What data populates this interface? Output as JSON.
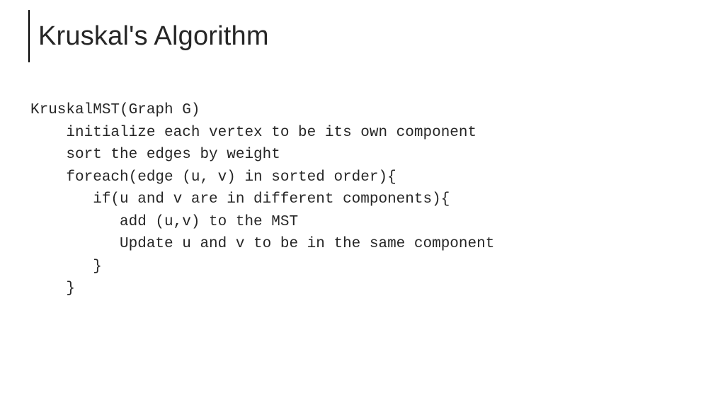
{
  "slide": {
    "title": "Kruskal's Algorithm",
    "code": {
      "l0": "KruskalMST(Graph G)",
      "l1": "    initialize each vertex to be its own component",
      "l2": "    sort the edges by weight",
      "l3": "    foreach(edge (u, v) in sorted order){",
      "l4": "       if(u and v are in different components){",
      "l5": "          add (u,v) to the MST",
      "l6": "          Update u and v to be in the same component",
      "l7": "       }",
      "l8": "    }"
    }
  },
  "style": {
    "title_fontsize": 38,
    "title_color": "#262626",
    "code_fontsize": 21,
    "code_color": "#262626",
    "code_font": "Courier New",
    "background_color": "#ffffff",
    "accent_bar_color": "#000000"
  }
}
